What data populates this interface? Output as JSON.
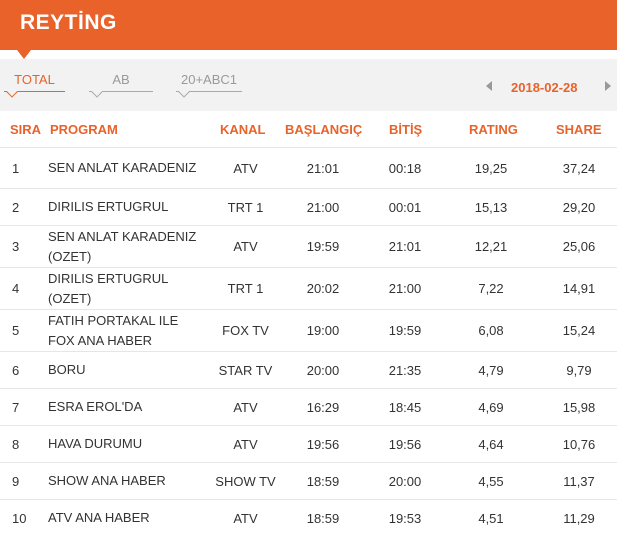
{
  "header": {
    "title": "REYTİNG"
  },
  "tabs": [
    {
      "label": "TOTAL",
      "active": true
    },
    {
      "label": "AB",
      "active": false
    },
    {
      "label": "20+ABC1",
      "active": false
    }
  ],
  "date": {
    "value": "2018-02-28"
  },
  "columns": {
    "sira": "SIRA",
    "program": "PROGRAM",
    "kanal": "KANAL",
    "baslangic": "BAŞLANGIÇ",
    "bitis": "BİTİŞ",
    "rating": "RATING",
    "share": "SHARE"
  },
  "rows": [
    {
      "sira": "1",
      "program": "SEN ANLAT KARADENIZ",
      "kanal": "ATV",
      "baslangic": "21:01",
      "bitis": "00:18",
      "rating": "19,25",
      "share": "37,24"
    },
    {
      "sira": "2",
      "program": "DIRILIS ERTUGRUL",
      "kanal": "TRT 1",
      "baslangic": "21:00",
      "bitis": "00:01",
      "rating": "15,13",
      "share": "29,20"
    },
    {
      "sira": "3",
      "program": "SEN ANLAT KARADENIZ (OZET)",
      "kanal": "ATV",
      "baslangic": "19:59",
      "bitis": "21:01",
      "rating": "12,21",
      "share": "25,06"
    },
    {
      "sira": "4",
      "program": "DIRILIS ERTUGRUL (OZET)",
      "kanal": "TRT 1",
      "baslangic": "20:02",
      "bitis": "21:00",
      "rating": "7,22",
      "share": "14,91"
    },
    {
      "sira": "5",
      "program": "FATIH PORTAKAL ILE FOX ANA HABER",
      "kanal": "FOX TV",
      "baslangic": "19:00",
      "bitis": "19:59",
      "rating": "6,08",
      "share": "15,24"
    },
    {
      "sira": "6",
      "program": "BORU",
      "kanal": "STAR TV",
      "baslangic": "20:00",
      "bitis": "21:35",
      "rating": "4,79",
      "share": "9,79"
    },
    {
      "sira": "7",
      "program": "ESRA EROL'DA",
      "kanal": "ATV",
      "baslangic": "16:29",
      "bitis": "18:45",
      "rating": "4,69",
      "share": "15,98"
    },
    {
      "sira": "8",
      "program": "HAVA DURUMU",
      "kanal": "ATV",
      "baslangic": "19:56",
      "bitis": "19:56",
      "rating": "4,64",
      "share": "10,76"
    },
    {
      "sira": "9",
      "program": "SHOW ANA HABER",
      "kanal": "SHOW TV",
      "baslangic": "18:59",
      "bitis": "20:00",
      "rating": "4,55",
      "share": "11,37"
    },
    {
      "sira": "10",
      "program": "ATV ANA HABER",
      "kanal": "ATV",
      "baslangic": "18:59",
      "bitis": "19:53",
      "rating": "4,51",
      "share": "11,29"
    }
  ]
}
